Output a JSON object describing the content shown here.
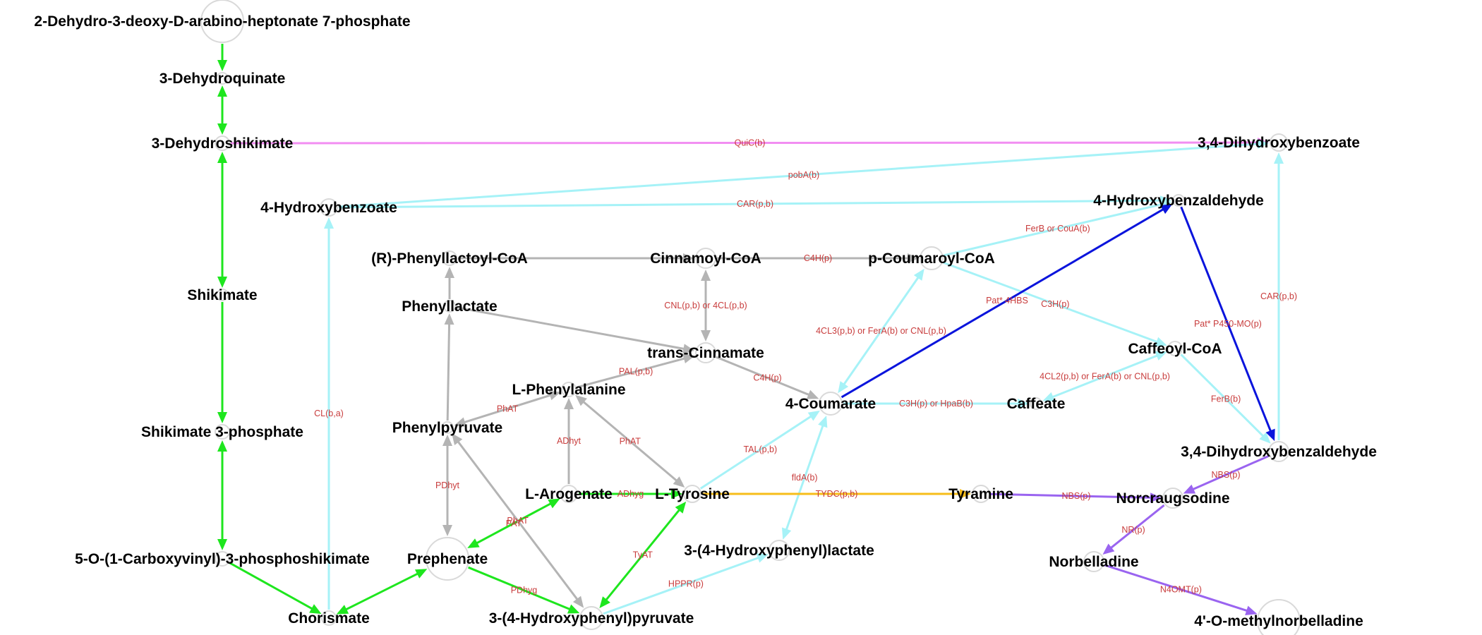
{
  "colors": {
    "green": "#1ee61e",
    "gray": "#b4b4b4",
    "cyan": "#a6f2f7",
    "pink": "#f28ef2",
    "blue": "#0a14dc",
    "orange": "#f7bd1a",
    "purple": "#9a64f0",
    "label": "#c83c3c"
  },
  "nodes": [
    {
      "id": "dahp",
      "label": "2-Dehydro-3-deoxy-D-arabino-heptonate 7-phosphate"
    },
    {
      "id": "dhq",
      "label": "3-Dehydroquinate"
    },
    {
      "id": "dhs",
      "label": "3-Dehydroshikimate"
    },
    {
      "id": "shik",
      "label": "Shikimate"
    },
    {
      "id": "s3p",
      "label": "Shikimate 3-phosphate"
    },
    {
      "id": "epsp",
      "label": "5-O-(1-Carboxyvinyl)-3-phosphoshikimate"
    },
    {
      "id": "chor",
      "label": "Chorismate"
    },
    {
      "id": "hb4",
      "label": "4-Hydroxybenzoate"
    },
    {
      "id": "rplcoa",
      "label": "(R)-Phenyllactoyl-CoA"
    },
    {
      "id": "plac",
      "label": "Phenyllactate"
    },
    {
      "id": "ppyr",
      "label": "Phenylpyruvate"
    },
    {
      "id": "lphe",
      "label": "L-Phenylalanine"
    },
    {
      "id": "larog",
      "label": "L-Arogenate"
    },
    {
      "id": "preph",
      "label": "Prephenate"
    },
    {
      "id": "ltyr",
      "label": "L-Tyrosine"
    },
    {
      "id": "hpp",
      "label": "3-(4-Hydroxyphenyl)pyruvate"
    },
    {
      "id": "hpl",
      "label": "3-(4-Hydroxyphenyl)lactate"
    },
    {
      "id": "cinncoa",
      "label": "Cinnamoyl-CoA"
    },
    {
      "id": "tcinn",
      "label": "trans-Cinnamate"
    },
    {
      "id": "coum",
      "label": "4-Coumarate"
    },
    {
      "id": "pcoumcoa",
      "label": "p-Coumaroyl-CoA"
    },
    {
      "id": "caff",
      "label": "Caffeate"
    },
    {
      "id": "caffcoa",
      "label": "Caffeoyl-CoA"
    },
    {
      "id": "tyram",
      "label": "Tyramine"
    },
    {
      "id": "hbald",
      "label": "4-Hydroxybenzaldehyde"
    },
    {
      "id": "dhb",
      "label": "3,4-Dihydroxybenzoate"
    },
    {
      "id": "dhbald",
      "label": "3,4-Dihydroxybenzaldehyde"
    },
    {
      "id": "norc",
      "label": "Norcraugsodine"
    },
    {
      "id": "norb",
      "label": "Norbelladine"
    },
    {
      "id": "omnb",
      "label": "4'-O-methylnorbelladine"
    }
  ],
  "edges": [
    {
      "from": "dahp",
      "to": "dhq",
      "color": "green",
      "label": ""
    },
    {
      "from": "dhq",
      "to": "dhs",
      "color": "green",
      "label": "",
      "bidir": true
    },
    {
      "from": "dhs",
      "to": "shik",
      "color": "green",
      "label": "",
      "bidir": true
    },
    {
      "from": "shik",
      "to": "s3p",
      "color": "green",
      "label": ""
    },
    {
      "from": "s3p",
      "to": "epsp",
      "color": "green",
      "label": "",
      "bidir": true
    },
    {
      "from": "epsp",
      "to": "chor",
      "color": "green",
      "label": ""
    },
    {
      "from": "chor",
      "to": "preph",
      "color": "green",
      "label": "",
      "bidir": true
    },
    {
      "from": "preph",
      "to": "larog",
      "color": "green",
      "label": "PAT",
      "bidir": true
    },
    {
      "from": "larog",
      "to": "ltyr",
      "color": "green",
      "label": "ADhyg"
    },
    {
      "from": "preph",
      "to": "hpp",
      "color": "green",
      "label": "PDhyg"
    },
    {
      "from": "hpp",
      "to": "ltyr",
      "color": "green",
      "label": "TyAT",
      "bidir": true
    },
    {
      "from": "dhs",
      "to": "dhb",
      "color": "pink",
      "label": "QuiC(b)"
    },
    {
      "from": "chor",
      "to": "hb4",
      "color": "cyan",
      "label": "CL(b,a)"
    },
    {
      "from": "hb4",
      "to": "dhb",
      "color": "cyan",
      "label": "pobA(b)"
    },
    {
      "from": "hb4",
      "to": "hbald",
      "color": "cyan",
      "label": "CAR(p,b)"
    },
    {
      "from": "dhbald",
      "to": "dhb",
      "color": "cyan",
      "label": "CAR(p,b)"
    },
    {
      "from": "pcoumcoa",
      "to": "hbald",
      "color": "cyan",
      "label": "FerB or CouA(b)"
    },
    {
      "from": "pcoumcoa",
      "to": "caffcoa",
      "color": "cyan",
      "label": "C3H(p)"
    },
    {
      "from": "coum",
      "to": "pcoumcoa",
      "color": "cyan",
      "label": "4CL3(p,b) or FerA(b) or CNL(p,b)",
      "bidir": true
    },
    {
      "from": "caff",
      "to": "caffcoa",
      "color": "cyan",
      "label": "4CL2(p,b) or FerA(b) or CNL(p,b)",
      "bidir": true
    },
    {
      "from": "caffcoa",
      "to": "dhbald",
      "color": "cyan",
      "label": "FerB(b)"
    },
    {
      "from": "coum",
      "to": "caff",
      "color": "cyan",
      "label": "C3H(p) or HpaB(b)"
    },
    {
      "from": "ltyr",
      "to": "coum",
      "color": "cyan",
      "label": "TAL(p,b)"
    },
    {
      "from": "coum",
      "to": "hpl",
      "color": "cyan",
      "label": "fldA(b)",
      "bidir": true
    },
    {
      "from": "hpp",
      "to": "hpl",
      "color": "cyan",
      "label": "HPPR(p)"
    },
    {
      "from": "coum",
      "to": "hbald",
      "color": "blue",
      "label": "Pat* 4HBS"
    },
    {
      "from": "hbald",
      "to": "dhbald",
      "color": "blue",
      "label": "Pat* P450-MO(p)"
    },
    {
      "from": "ltyr",
      "to": "tyram",
      "color": "orange",
      "label": "TYDC(p,b)"
    },
    {
      "from": "tyram",
      "to": "norc",
      "color": "purple",
      "label": "NBS(p)"
    },
    {
      "from": "dhbald",
      "to": "norc",
      "color": "purple",
      "label": "NBS(p)"
    },
    {
      "from": "norc",
      "to": "norb",
      "color": "purple",
      "label": "NR(p)"
    },
    {
      "from": "norb",
      "to": "omnb",
      "color": "purple",
      "label": "N4OMT(p)"
    },
    {
      "from": "rplcoa",
      "to": "cinncoa",
      "color": "gray",
      "label": ""
    },
    {
      "from": "cinncoa",
      "to": "pcoumcoa",
      "color": "gray",
      "label": "C4H(p)"
    },
    {
      "from": "tcinn",
      "to": "cinncoa",
      "color": "gray",
      "label": "CNL(p,b) or 4CL(p,b)",
      "bidir": true
    },
    {
      "from": "plac",
      "to": "rplcoa",
      "color": "gray",
      "label": ""
    },
    {
      "from": "plac",
      "to": "tcinn",
      "color": "gray",
      "label": ""
    },
    {
      "from": "ppyr",
      "to": "plac",
      "color": "gray",
      "label": ""
    },
    {
      "from": "lphe",
      "to": "tcinn",
      "color": "gray",
      "label": "PAL(p,b)"
    },
    {
      "from": "tcinn",
      "to": "coum",
      "color": "gray",
      "label": "C4H(p)"
    },
    {
      "from": "lphe",
      "to": "ppyr",
      "color": "gray",
      "label": "PhAT",
      "bidir": true
    },
    {
      "from": "larog",
      "to": "lphe",
      "color": "gray",
      "label": "ADhyt"
    },
    {
      "from": "ltyr",
      "to": "lphe",
      "color": "gray",
      "label": "PhAT",
      "bidir": true
    },
    {
      "from": "preph",
      "to": "ppyr",
      "color": "gray",
      "label": "PDhyt",
      "bidir": true
    },
    {
      "from": "ppyr",
      "to": "hpp",
      "color": "gray",
      "label": "PhAT",
      "bidir": true
    }
  ]
}
